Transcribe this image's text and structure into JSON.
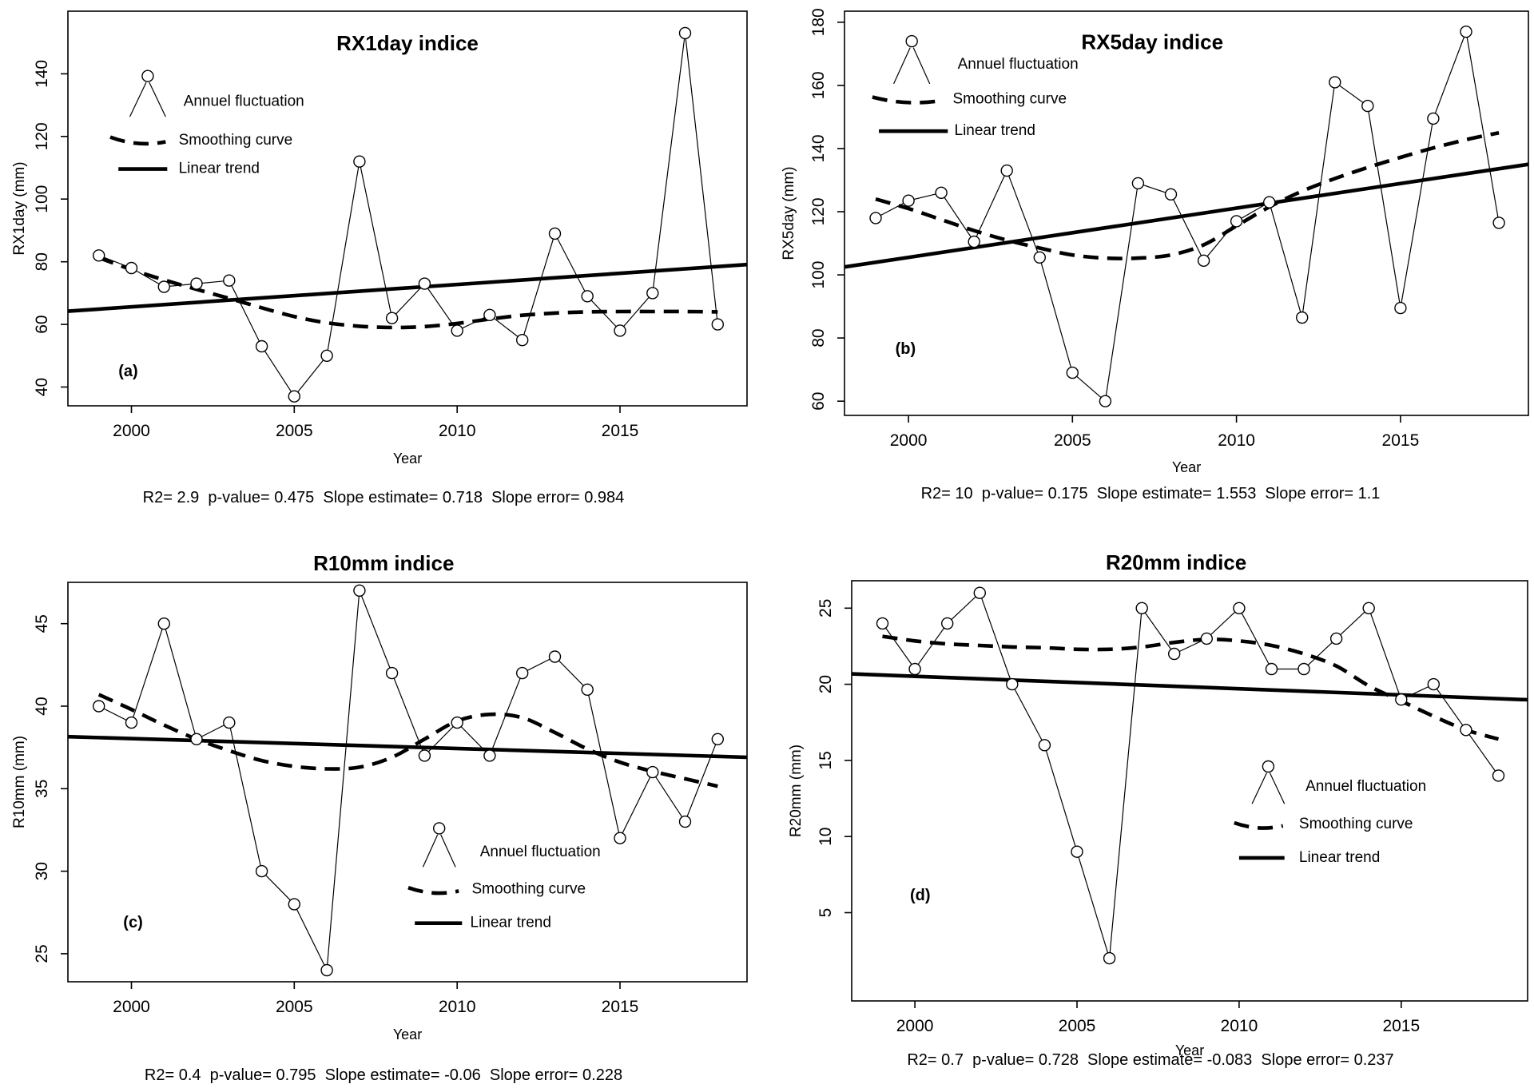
{
  "page": {
    "background": "#ffffff",
    "ink": "#000000"
  },
  "chart_data": [
    {
      "type": "line",
      "id": "a",
      "panel_label": "(a)",
      "title": "RX1day indice",
      "title_position": "inside",
      "xlabel": "Year",
      "ylabel": "RX1day (mm)",
      "x_ticks": [
        2000,
        2005,
        2010,
        2015
      ],
      "y_ticks": [
        40,
        60,
        80,
        100,
        120,
        140
      ],
      "xlim": [
        1998.05,
        2018.9
      ],
      "ylim": [
        34,
        160
      ],
      "grid": false,
      "years": [
        1999,
        2000,
        2001,
        2002,
        2003,
        2004,
        2005,
        2006,
        2007,
        2008,
        2009,
        2010,
        2011,
        2012,
        2013,
        2014,
        2015,
        2016,
        2017,
        2018
      ],
      "series": [
        {
          "name": "Annuel fluctuation",
          "style": "points-line",
          "values": [
            82,
            78,
            72,
            73,
            74,
            53,
            37,
            50,
            112,
            62,
            73,
            58,
            63,
            55,
            89,
            69,
            58,
            70,
            153,
            60
          ]
        },
        {
          "name": "Smoothing curve",
          "style": "dashed",
          "values": [
            81.3,
            77.5,
            74.2,
            71.2,
            68.3,
            65.3,
            62.5,
            60.5,
            59.4,
            59,
            59.3,
            60.3,
            61.7,
            62.9,
            63.6,
            64,
            64.1,
            64.1,
            64.1,
            64
          ]
        },
        {
          "name": "Linear trend",
          "style": "solid-trend",
          "x": [
            1998.05,
            2018.9
          ],
          "values": [
            64.2,
            79.1
          ]
        }
      ],
      "legend": {
        "labels": [
          "Annuel fluctuation",
          "Smoothing curve",
          "Linear trend"
        ],
        "position": "top-left"
      },
      "stats": {
        "r2": "2.9",
        "p_value": "0.475",
        "slope_estimate": "0.718",
        "slope_error": "0.984"
      },
      "stats_line": "R2= 2.9  p-value= 0.475  Slope estimate= 0.718  Slope error= 0.984"
    },
    {
      "type": "line",
      "id": "b",
      "panel_label": "(b)",
      "title": "RX5day indice",
      "title_position": "inside",
      "xlabel": "Year",
      "ylabel": "RX5day (mm)",
      "x_ticks": [
        2000,
        2005,
        2010,
        2015
      ],
      "y_ticks": [
        60,
        80,
        100,
        120,
        140,
        160,
        180
      ],
      "xlim": [
        1998.05,
        2018.9
      ],
      "ylim": [
        55.5,
        183.5
      ],
      "grid": false,
      "years": [
        1999,
        2000,
        2001,
        2002,
        2003,
        2004,
        2005,
        2006,
        2007,
        2008,
        2009,
        2010,
        2011,
        2012,
        2013,
        2014,
        2015,
        2016,
        2017,
        2018
      ],
      "series": [
        {
          "name": "Annuel fluctuation",
          "style": "points-line",
          "values": [
            118,
            123.5,
            126,
            110.5,
            133,
            105.5,
            69,
            60,
            129,
            125.5,
            104.5,
            117,
            123,
            86.5,
            161,
            153.5,
            89.5,
            149.5,
            177,
            116.5
          ]
        },
        {
          "name": "Smoothing curve",
          "style": "dashed",
          "values": [
            124,
            121,
            117.5,
            114,
            111,
            108.5,
            106.3,
            105.3,
            105.3,
            106.3,
            109.5,
            115.5,
            121.5,
            126.5,
            130.5,
            134,
            137.2,
            140.2,
            142.8,
            145
          ]
        },
        {
          "name": "Linear trend",
          "style": "solid-trend",
          "x": [
            1998.05,
            2018.9
          ],
          "values": [
            102.5,
            135.0
          ]
        }
      ],
      "legend": {
        "labels": [
          "Annuel fluctuation",
          "Smoothing curve",
          "Linear trend"
        ],
        "position": "top-left"
      },
      "stats": {
        "r2": "10",
        "p_value": "0.175",
        "slope_estimate": "1.553",
        "slope_error": "1.1"
      },
      "stats_line": "R2= 10  p-value= 0.175  Slope estimate= 1.553  Slope error= 1.1"
    },
    {
      "type": "line",
      "id": "c",
      "panel_label": "(c)",
      "title": "R10mm indice",
      "title_position": "above",
      "xlabel": "Year",
      "ylabel": "R10mm (mm)",
      "x_ticks": [
        2000,
        2005,
        2010,
        2015
      ],
      "y_ticks": [
        25,
        30,
        35,
        40,
        45
      ],
      "xlim": [
        1998.05,
        2018.9
      ],
      "ylim": [
        23.3,
        47.5
      ],
      "grid": false,
      "years": [
        1999,
        2000,
        2001,
        2002,
        2003,
        2004,
        2005,
        2006,
        2007,
        2008,
        2009,
        2010,
        2011,
        2012,
        2013,
        2014,
        2015,
        2016,
        2017,
        2018
      ],
      "series": [
        {
          "name": "Annuel fluctuation",
          "style": "points-line",
          "values": [
            40,
            39,
            45,
            38,
            39,
            30,
            28,
            24,
            47,
            42,
            37,
            39,
            37,
            42,
            43,
            41,
            32,
            36,
            33,
            38
          ]
        },
        {
          "name": "Smoothing curve",
          "style": "dashed",
          "values": [
            40.7,
            39.8,
            38.85,
            38.0,
            37.3,
            36.7,
            36.35,
            36.2,
            36.3,
            36.9,
            38.0,
            39.1,
            39.5,
            39.3,
            38.4,
            37.4,
            36.6,
            36.05,
            35.6,
            35.15
          ]
        },
        {
          "name": "Linear trend",
          "style": "solid-trend",
          "x": [
            1998.05,
            2018.9
          ],
          "values": [
            38.15,
            36.9
          ]
        }
      ],
      "legend": {
        "labels": [
          "Annuel fluctuation",
          "Smoothing curve",
          "Linear trend"
        ],
        "position": "center-right"
      },
      "stats": {
        "r2": "0.4",
        "p_value": "0.795",
        "slope_estimate": "-0.06",
        "slope_error": "0.228"
      },
      "stats_line": "R2= 0.4  p-value= 0.795  Slope estimate= -0.06  Slope error= 0.228"
    },
    {
      "type": "line",
      "id": "d",
      "panel_label": "(d)",
      "title": "R20mm indice",
      "title_position": "above",
      "xlabel": "Year",
      "ylabel": "R20mm (mm)",
      "x_ticks": [
        2000,
        2005,
        2010,
        2015
      ],
      "y_ticks": [
        5,
        10,
        15,
        20,
        25
      ],
      "xlim": [
        1998.05,
        2018.9
      ],
      "ylim": [
        -0.8,
        26.8
      ],
      "grid": false,
      "years": [
        1999,
        2000,
        2001,
        2002,
        2003,
        2004,
        2005,
        2006,
        2007,
        2008,
        2009,
        2010,
        2011,
        2012,
        2013,
        2014,
        2015,
        2016,
        2017,
        2018
      ],
      "series": [
        {
          "name": "Annuel fluctuation",
          "style": "points-line",
          "values": [
            24,
            21,
            24,
            26,
            20,
            16,
            9,
            2,
            25,
            22,
            23,
            25,
            21,
            21,
            23,
            25,
            19,
            20,
            17,
            14
          ]
        },
        {
          "name": "Smoothing curve",
          "style": "dashed",
          "values": [
            23.15,
            22.85,
            22.65,
            22.55,
            22.45,
            22.4,
            22.3,
            22.3,
            22.45,
            22.75,
            22.95,
            22.85,
            22.55,
            22.0,
            21.2,
            19.9,
            18.9,
            17.9,
            17.0,
            16.4
          ]
        },
        {
          "name": "Linear trend",
          "style": "solid-trend",
          "x": [
            1998.05,
            2018.9
          ],
          "values": [
            20.68,
            18.98
          ]
        }
      ],
      "legend": {
        "labels": [
          "Annuel fluctuation",
          "Smoothing curve",
          "Linear trend"
        ],
        "position": "center-right"
      },
      "stats": {
        "r2": "0.7",
        "p_value": "0.728",
        "slope_estimate": "-0.083",
        "slope_error": "0.237"
      },
      "stats_line": "R2= 0.7  p-value= 0.728  Slope estimate= -0.083  Slope error= 0.237"
    }
  ]
}
